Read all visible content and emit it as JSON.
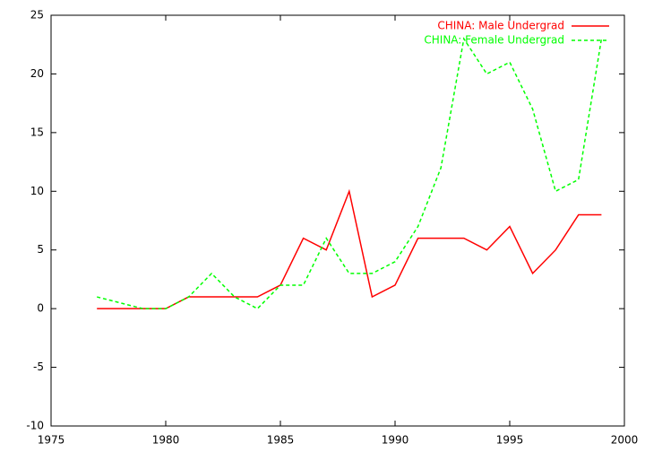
{
  "chart_data": {
    "type": "line",
    "x": [
      1977,
      1978,
      1979,
      1980,
      1981,
      1982,
      1983,
      1984,
      1985,
      1986,
      1987,
      1988,
      1989,
      1990,
      1991,
      1992,
      1993,
      1994,
      1995,
      1996,
      1997,
      1998,
      1999
    ],
    "series": [
      {
        "name": "CHINA: Male Undergrad",
        "color": "#ff0000",
        "dash": false,
        "values": [
          0,
          0,
          0,
          0,
          1,
          1,
          1,
          1,
          2,
          6,
          5,
          10,
          1,
          2,
          6,
          6,
          6,
          5,
          7,
          3,
          5,
          8,
          8
        ]
      },
      {
        "name": "CHINA: Female Undergrad",
        "color": "#00ff00",
        "dash": true,
        "values": [
          1,
          0.5,
          0,
          0,
          1,
          3,
          1,
          0,
          2,
          2,
          6,
          3,
          3,
          4,
          7,
          12,
          23,
          20,
          21,
          17,
          10,
          11,
          23
        ]
      }
    ],
    "xlim": [
      1975,
      2000
    ],
    "xticks": [
      1975,
      1980,
      1985,
      1990,
      1995,
      2000
    ],
    "ylim": [
      -10,
      25
    ],
    "yticks": [
      -10,
      -5,
      0,
      5,
      10,
      15,
      20,
      25
    ],
    "legend": "top-right",
    "grid": false
  }
}
